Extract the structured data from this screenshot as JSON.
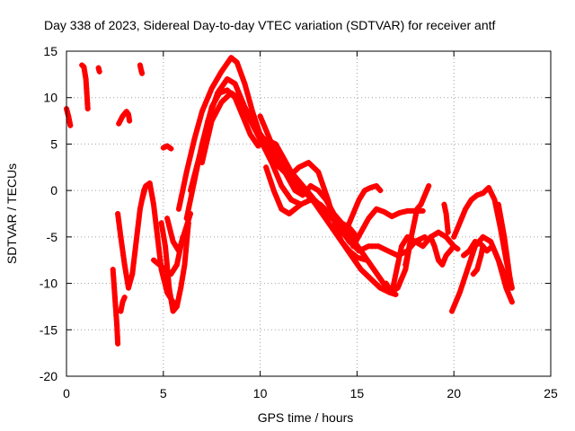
{
  "chart_data": {
    "type": "scatter",
    "title": "Day 338 of 2023, Sidereal Day-to-day VTEC variation (SDTVAR) for receiver antf",
    "xlabel": "GPS time / hours",
    "ylabel": "SDTVAR / TECUs",
    "xlim": [
      0,
      25
    ],
    "ylim": [
      -20,
      15
    ],
    "xticks": [
      0,
      5,
      10,
      15,
      20,
      25
    ],
    "yticks": [
      -20,
      -15,
      -10,
      -5,
      0,
      5,
      10,
      15
    ],
    "xtick_labels": [
      "0",
      "5",
      "10",
      "15",
      "20",
      "25"
    ],
    "ytick_labels": [
      "-20",
      "-15",
      "-10",
      "-5",
      "0",
      "5",
      "10",
      "15"
    ],
    "grid": true,
    "marker": "+",
    "color": "#ff0000",
    "segments": [
      {
        "name": "seg-a",
        "x": [
          0.0,
          0.1,
          0.2
        ],
        "y": [
          8.8,
          8.0,
          7.0
        ]
      },
      {
        "name": "seg-b",
        "x": [
          0.8,
          0.9,
          1.0,
          1.05,
          1.1
        ],
        "y": [
          13.5,
          13.3,
          12.0,
          10.5,
          8.8
        ]
      },
      {
        "name": "seg-c",
        "x": [
          1.65,
          1.7
        ],
        "y": [
          13.2,
          12.8
        ]
      },
      {
        "name": "seg-d",
        "x": [
          2.7,
          2.9,
          3.1,
          3.2,
          3.25
        ],
        "y": [
          7.2,
          8.0,
          8.5,
          8.2,
          7.5
        ]
      },
      {
        "name": "seg-e",
        "x": [
          3.8,
          3.85,
          3.9
        ],
        "y": [
          13.5,
          13.0,
          12.6
        ]
      },
      {
        "name": "seg-f",
        "x": [
          2.4,
          2.5,
          2.6,
          2.65
        ],
        "y": [
          -8.5,
          -11.5,
          -14.5,
          -16.5
        ]
      },
      {
        "name": "seg-g",
        "x": [
          2.65,
          2.8,
          3.0,
          3.2,
          3.4,
          3.6,
          3.8,
          4.0,
          4.1
        ],
        "y": [
          -2.5,
          -5.0,
          -8.0,
          -10.5,
          -9.0,
          -5.5,
          -2.0,
          0.0,
          0.5
        ]
      },
      {
        "name": "seg-h",
        "x": [
          2.8,
          2.9,
          3.0
        ],
        "y": [
          -13.0,
          -12.0,
          -11.5
        ]
      },
      {
        "name": "seg-i",
        "x": [
          3.9,
          4.1,
          4.3,
          4.5,
          4.7,
          4.9,
          5.2,
          5.5
        ],
        "y": [
          -1.0,
          0.5,
          0.8,
          -1.5,
          -5.0,
          -8.5,
          -11.0,
          -12.0
        ]
      },
      {
        "name": "seg-j",
        "x": [
          4.5,
          4.8,
          5.1,
          5.4,
          5.7,
          6.0
        ],
        "y": [
          -7.5,
          -8.0,
          -8.5,
          -9.0,
          -8.0,
          -5.0
        ]
      },
      {
        "name": "seg-k",
        "x": [
          4.9,
          5.1,
          5.3,
          5.5,
          5.7,
          5.9,
          6.1,
          6.3
        ],
        "y": [
          -3.5,
          -6.0,
          -10.5,
          -13.0,
          -12.5,
          -10.5,
          -8.0,
          -3.5
        ]
      },
      {
        "name": "seg-l",
        "x": [
          5.2,
          5.5,
          5.8,
          6.1,
          6.4
        ],
        "y": [
          -3.0,
          -5.5,
          -6.5,
          -4.5,
          -2.5
        ]
      },
      {
        "name": "seg-m",
        "x": [
          5.0,
          5.2,
          5.4
        ],
        "y": [
          4.6,
          4.8,
          4.5
        ]
      },
      {
        "name": "seg-n",
        "x": [
          5.8,
          6.2,
          6.6,
          7.0,
          7.5,
          8.0,
          8.5,
          8.8,
          9.2,
          9.6,
          10.0,
          10.5,
          11.0,
          11.5,
          12.0,
          12.5,
          13.0,
          13.5,
          14.0,
          14.2,
          14.6,
          15.0,
          15.5
        ],
        "y": [
          -2.0,
          2.0,
          5.5,
          8.5,
          11.0,
          12.8,
          14.3,
          13.8,
          11.5,
          8.5,
          6.0,
          4.0,
          2.5,
          1.5,
          2.5,
          3.0,
          2.0,
          -1.0,
          -4.5,
          -5.5,
          -6.5,
          -7.2,
          -7.5
        ]
      },
      {
        "name": "seg-o",
        "x": [
          6.4,
          6.9,
          7.3,
          7.8,
          8.3,
          8.7,
          9.2,
          9.7,
          10.2,
          10.7,
          11.2,
          11.7,
          12.2,
          12.7,
          13.2,
          13.7,
          14.2,
          14.7,
          15.2,
          15.7,
          16.2,
          16.7,
          17.1,
          17.5,
          17.8
        ],
        "y": [
          0.0,
          4.0,
          7.5,
          10.5,
          12.0,
          11.5,
          9.0,
          7.0,
          5.5,
          4.0,
          2.5,
          1.0,
          0.0,
          -1.0,
          -2.5,
          -4.0,
          -5.5,
          -7.0,
          -8.5,
          -9.5,
          -10.5,
          -11.0,
          -10.5,
          -8.5,
          -5.0
        ]
      },
      {
        "name": "seg-p",
        "x": [
          6.2,
          6.6,
          7.0,
          7.5,
          7.9,
          8.3,
          8.7,
          9.1,
          9.5,
          9.9,
          10.3,
          10.8,
          11.2,
          11.6,
          12.0,
          12.4,
          12.8,
          13.3,
          13.7,
          14.2,
          14.7,
          15.2,
          15.7,
          16.2,
          16.7,
          17.0
        ],
        "y": [
          -3.0,
          1.0,
          5.0,
          9.0,
          10.5,
          10.8,
          10.0,
          8.0,
          6.0,
          4.8,
          5.5,
          5.0,
          3.5,
          2.0,
          1.0,
          0.0,
          -1.0,
          -2.0,
          -3.0,
          -4.0,
          -5.0,
          -6.5,
          -8.0,
          -9.5,
          -11.0,
          -11.2
        ]
      },
      {
        "name": "seg-q",
        "x": [
          7.0,
          7.5,
          8.0,
          8.5,
          9.0,
          9.5,
          10.0,
          10.6,
          11.1,
          11.6,
          12.1,
          12.6,
          13.1,
          13.6,
          14.1,
          14.6,
          15.1,
          15.6,
          16.1,
          16.6,
          17.1,
          17.6,
          18.0,
          18.5
        ],
        "y": [
          3.0,
          7.5,
          9.5,
          10.5,
          9.8,
          7.5,
          5.5,
          3.0,
          0.5,
          -1.0,
          -1.5,
          -1.0,
          -1.5,
          -2.5,
          -4.0,
          -5.5,
          -6.5,
          -6.0,
          -6.0,
          -6.5,
          -7.0,
          -6.5,
          -5.5,
          -5.0
        ]
      },
      {
        "name": "seg-r",
        "x": [
          10.0,
          10.3,
          10.6,
          11.0,
          11.4,
          11.8,
          12.2,
          12.6,
          13.0,
          13.4,
          13.8,
          14.2,
          14.6,
          15.0
        ],
        "y": [
          8.0,
          6.5,
          5.0,
          3.0,
          1.5,
          0.0,
          -0.5,
          0.5,
          0.0,
          -1.0,
          -2.5,
          -3.5,
          -4.0,
          -5.0
        ]
      },
      {
        "name": "seg-s",
        "x": [
          10.3,
          10.7,
          11.1,
          11.5,
          11.8,
          12.1
        ],
        "y": [
          2.5,
          0.0,
          -2.0,
          -2.5,
          -2.0,
          -1.5
        ]
      },
      {
        "name": "seg-t",
        "x": [
          14.8,
          15.2,
          15.6,
          16.0,
          16.4,
          16.8,
          17.2,
          17.6,
          18.0,
          18.4
        ],
        "y": [
          -6.0,
          -4.5,
          -3.0,
          -2.0,
          -2.3,
          -2.8,
          -2.4,
          -2.2,
          -2.2,
          -2.2
        ]
      },
      {
        "name": "seg-u",
        "x": [
          14.5,
          14.8,
          15.1,
          15.4,
          15.7,
          16.0,
          16.2
        ],
        "y": [
          -4.0,
          -2.5,
          -1.0,
          0.0,
          0.3,
          0.5,
          0.0
        ]
      },
      {
        "name": "seg-v",
        "x": [
          16.5,
          16.8,
          17.0,
          17.3,
          17.6,
          18.0,
          18.4,
          18.8,
          19.2,
          19.6,
          20.0
        ],
        "y": [
          -10.0,
          -11.0,
          -9.0,
          -6.0,
          -5.0,
          -5.5,
          -6.0,
          -5.0,
          -4.5,
          -5.0,
          -6.0
        ]
      },
      {
        "name": "seg-w",
        "x": [
          17.5,
          17.7,
          17.9,
          18.1,
          18.3,
          18.5,
          18.7
        ],
        "y": [
          -8.0,
          -6.0,
          -4.0,
          -2.0,
          -1.5,
          -0.5,
          0.5
        ]
      },
      {
        "name": "seg-x",
        "x": [
          18.8,
          19.0,
          19.2,
          19.4,
          19.6,
          19.8,
          20.0,
          20.2
        ],
        "y": [
          -5.0,
          -6.0,
          -7.5,
          -8.0,
          -7.0,
          -6.5,
          -6.0,
          -6.3
        ]
      },
      {
        "name": "seg-y",
        "x": [
          19.5,
          19.6,
          19.7
        ],
        "y": [
          -1.5,
          -2.5,
          -4.5
        ]
      },
      {
        "name": "seg-z",
        "x": [
          19.9,
          20.3,
          20.7,
          21.1,
          21.5,
          21.9,
          22.3,
          22.7,
          23.0
        ],
        "y": [
          -13.0,
          -11.0,
          -8.5,
          -6.0,
          -5.0,
          -5.5,
          -7.5,
          -10.5,
          -12.0
        ]
      },
      {
        "name": "seg-aa",
        "x": [
          20.0,
          20.3,
          20.6,
          20.9,
          21.2,
          21.5,
          21.8,
          22.1,
          22.4,
          22.7,
          23.0
        ],
        "y": [
          -5.0,
          -3.5,
          -2.0,
          -1.0,
          -0.5,
          -0.3,
          0.3,
          -1.0,
          -4.0,
          -7.5,
          -10.5
        ]
      },
      {
        "name": "seg-ab",
        "x": [
          20.5,
          20.8,
          21.1,
          21.4,
          21.7,
          22.0,
          22.3,
          22.6,
          22.9
        ],
        "y": [
          -7.0,
          -6.5,
          -5.5,
          -5.8,
          -6.5,
          -6.0,
          -7.5,
          -9.0,
          -10.5
        ]
      },
      {
        "name": "seg-ac",
        "x": [
          21.0,
          21.2,
          21.4,
          21.5
        ],
        "y": [
          -9.0,
          -8.5,
          -7.0,
          -6.0
        ]
      },
      {
        "name": "seg-ad",
        "x": [
          22.3,
          22.6,
          22.9
        ],
        "y": [
          -1.5,
          -5.0,
          -9.5
        ]
      }
    ]
  }
}
